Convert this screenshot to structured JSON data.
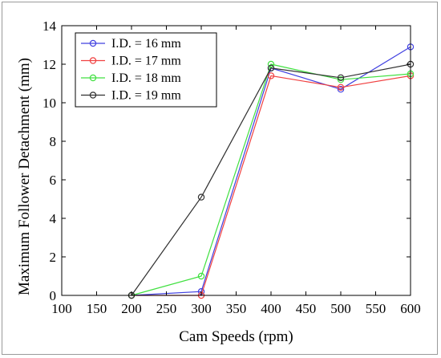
{
  "chart_data": {
    "type": "line",
    "title": "",
    "xlabel": "Cam Speeds (rpm)",
    "ylabel": "Maximum Follower Detachment (mm)",
    "xlim": [
      100,
      600
    ],
    "ylim": [
      0,
      14
    ],
    "xticks": [
      "100",
      "150",
      "200",
      "250",
      "300",
      "350",
      "400",
      "450",
      "500",
      "550",
      "600"
    ],
    "yticks": [
      "0",
      "2",
      "4",
      "6",
      "8",
      "10",
      "12",
      "14"
    ],
    "grid": false,
    "legend_position": "top-left",
    "x": [
      200,
      300,
      400,
      500,
      600
    ],
    "series": [
      {
        "name": "I.D. = 16 mm",
        "color": "#4040e0",
        "values": [
          0,
          0.2,
          11.8,
          10.7,
          12.9
        ]
      },
      {
        "name": "I.D. = 17 mm",
        "color": "#f04040",
        "values": [
          0,
          0.0,
          11.4,
          10.8,
          11.4
        ]
      },
      {
        "name": "I.D. = 18 mm",
        "color": "#40e040",
        "values": [
          0,
          1.0,
          12.0,
          11.2,
          11.5
        ]
      },
      {
        "name": "I.D. = 19 mm",
        "color": "#303030",
        "values": [
          0,
          5.1,
          11.8,
          11.3,
          12.0
        ]
      }
    ]
  }
}
